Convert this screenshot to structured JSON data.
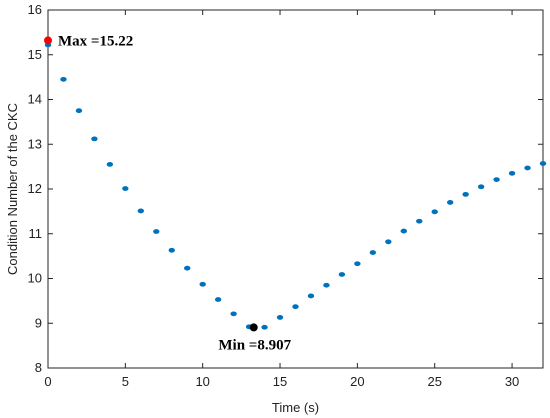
{
  "chart_data": {
    "type": "scatter",
    "xlabel": "Time (s)",
    "ylabel": "Condition Number of the CKC",
    "xlim": [
      0,
      32
    ],
    "ylim": [
      8,
      16
    ],
    "x_ticks": [
      0,
      5,
      10,
      15,
      20,
      25,
      30
    ],
    "y_ticks": [
      8,
      9,
      10,
      11,
      12,
      13,
      14,
      15,
      16
    ],
    "grid": false,
    "series": [
      {
        "color": "#0072BD",
        "x": [
          0,
          1,
          2,
          3,
          4,
          5,
          6,
          7,
          8,
          9,
          10,
          11,
          12,
          13,
          14,
          15,
          16,
          17,
          18,
          19,
          20,
          21,
          22,
          23,
          24,
          25,
          26,
          27,
          28,
          29,
          30,
          31,
          32
        ],
        "y": [
          15.22,
          14.45,
          13.75,
          13.12,
          12.55,
          12.01,
          11.51,
          11.05,
          10.63,
          10.23,
          9.87,
          9.53,
          9.21,
          8.92,
          8.91,
          9.13,
          9.37,
          9.61,
          9.85,
          10.09,
          10.33,
          10.58,
          10.82,
          11.06,
          11.28,
          11.49,
          11.7,
          11.88,
          12.05,
          12.21,
          12.35,
          12.47,
          12.57
        ]
      }
    ],
    "annotations": [
      {
        "label": "Max =15.22",
        "x": 0,
        "y": 15.32,
        "color": "#ff0000"
      },
      {
        "label": "Min =8.907",
        "x": 13.3,
        "y": 8.907,
        "color": "#000000"
      }
    ]
  }
}
